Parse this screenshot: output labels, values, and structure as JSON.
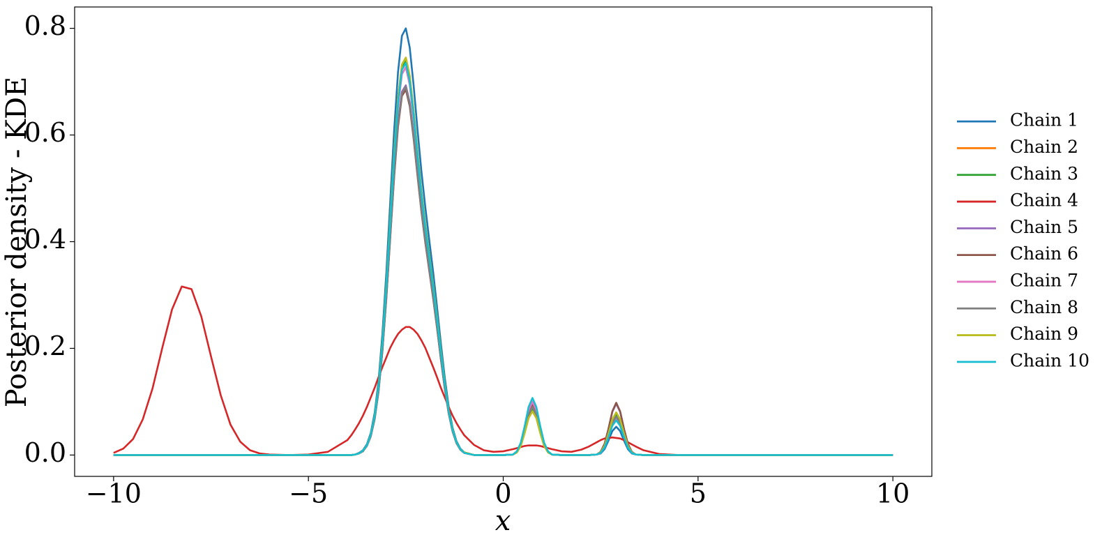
{
  "chart_data": {
    "type": "line",
    "xlabel": "x",
    "ylabel": "Posterior density - KDE",
    "xlim": [
      -11,
      11
    ],
    "ylim": [
      -0.04,
      0.84
    ],
    "xticks": [
      {
        "value": -10,
        "label": "−10"
      },
      {
        "value": -5,
        "label": "−5"
      },
      0,
      5,
      10
    ],
    "yticks": [
      {
        "value": 0,
        "label": "0.0"
      },
      0.2,
      0.4,
      0.6,
      0.8
    ],
    "grid": false,
    "legend": "right",
    "x": [
      -10,
      -9.75,
      -9.5,
      -9.25,
      -9,
      -8.75,
      -8.5,
      -8.25,
      -8,
      -7.75,
      -7.5,
      -7.25,
      -7,
      -6.75,
      -6.5,
      -6.25,
      -6,
      -5.5,
      -5,
      -4.5,
      -4,
      -3.9,
      -3.8,
      -3.7,
      -3.6,
      -3.5,
      -3.4,
      -3.3,
      -3.2,
      -3.1,
      -3,
      -2.9,
      -2.8,
      -2.7,
      -2.6,
      -2.5,
      -2.4,
      -2.3,
      -2.2,
      -2.1,
      -2,
      -1.9,
      -1.8,
      -1.7,
      -1.6,
      -1.5,
      -1.4,
      -1.3,
      -1.2,
      -1.1,
      -1,
      -0.75,
      -0.5,
      -0.25,
      0,
      0.25,
      0.35,
      0.45,
      0.55,
      0.65,
      0.75,
      0.85,
      0.95,
      1.05,
      1.15,
      1.25,
      1.5,
      1.75,
      2,
      2.2,
      2.4,
      2.5,
      2.6,
      2.7,
      2.8,
      2.9,
      3,
      3.1,
      3.2,
      3.3,
      3.4,
      3.6,
      4,
      4.5,
      5,
      6,
      7,
      8,
      9,
      10
    ],
    "series": [
      {
        "name": "Chain 1",
        "color": "#1f77b4",
        "values": [
          0,
          0,
          0,
          0,
          0,
          0,
          0,
          0,
          0,
          0,
          0,
          0,
          0,
          0,
          0,
          0,
          0,
          0,
          0,
          0,
          0,
          0,
          0.001,
          0.004,
          0.009,
          0.02,
          0.041,
          0.079,
          0.139,
          0.228,
          0.342,
          0.475,
          0.608,
          0.718,
          0.786,
          0.8,
          0.764,
          0.693,
          0.61,
          0.532,
          0.465,
          0.404,
          0.344,
          0.278,
          0.209,
          0.145,
          0.091,
          0.051,
          0.026,
          0.012,
          0.005,
          0,
          0,
          0,
          0,
          0.001,
          0.006,
          0.019,
          0.045,
          0.076,
          0.09,
          0.076,
          0.045,
          0.019,
          0.006,
          0.001,
          0,
          0,
          0,
          0,
          0.001,
          0.003,
          0.011,
          0.027,
          0.045,
          0.053,
          0.045,
          0.027,
          0.011,
          0.003,
          0.001,
          0,
          0,
          0,
          0,
          0,
          0,
          0,
          0,
          0
        ]
      },
      {
        "name": "Chain 2",
        "color": "#ff7f0e",
        "values": [
          0,
          0,
          0,
          0,
          0,
          0,
          0,
          0,
          0,
          0,
          0,
          0,
          0,
          0,
          0,
          0,
          0,
          0,
          0,
          0,
          0,
          0,
          0.001,
          0.003,
          0.008,
          0.018,
          0.038,
          0.073,
          0.13,
          0.212,
          0.319,
          0.442,
          0.566,
          0.669,
          0.732,
          0.745,
          0.711,
          0.645,
          0.568,
          0.495,
          0.433,
          0.377,
          0.32,
          0.259,
          0.195,
          0.135,
          0.084,
          0.048,
          0.024,
          0.011,
          0.005,
          0,
          0,
          0,
          0,
          0.001,
          0.005,
          0.017,
          0.042,
          0.07,
          0.083,
          0.07,
          0.042,
          0.017,
          0.005,
          0.001,
          0,
          0,
          0,
          0,
          0.001,
          0.005,
          0.016,
          0.039,
          0.066,
          0.078,
          0.066,
          0.039,
          0.016,
          0.005,
          0.001,
          0,
          0,
          0,
          0,
          0,
          0,
          0,
          0,
          0
        ]
      },
      {
        "name": "Chain 3",
        "color": "#2ca02c",
        "values": [
          0,
          0,
          0,
          0,
          0,
          0,
          0,
          0,
          0,
          0,
          0,
          0,
          0,
          0,
          0,
          0,
          0,
          0,
          0,
          0,
          0,
          0,
          0.001,
          0.003,
          0.008,
          0.018,
          0.038,
          0.073,
          0.129,
          0.21,
          0.317,
          0.439,
          0.562,
          0.664,
          0.727,
          0.74,
          0.706,
          0.641,
          0.564,
          0.492,
          0.43,
          0.374,
          0.318,
          0.257,
          0.194,
          0.134,
          0.084,
          0.048,
          0.024,
          0.011,
          0.005,
          0,
          0,
          0,
          0,
          0.001,
          0.005,
          0.018,
          0.043,
          0.072,
          0.086,
          0.072,
          0.043,
          0.018,
          0.005,
          0.001,
          0,
          0,
          0,
          0,
          0.001,
          0.005,
          0.016,
          0.038,
          0.063,
          0.075,
          0.063,
          0.038,
          0.016,
          0.005,
          0.001,
          0,
          0,
          0,
          0,
          0,
          0,
          0,
          0,
          0
        ]
      },
      {
        "name": "Chain 4",
        "color": "#d62728",
        "values": [
          0.004,
          0.012,
          0.03,
          0.067,
          0.125,
          0.201,
          0.273,
          0.316,
          0.311,
          0.26,
          0.185,
          0.112,
          0.057,
          0.025,
          0.009,
          0.003,
          0.001,
          0,
          0.001,
          0.006,
          0.028,
          0.037,
          0.048,
          0.06,
          0.074,
          0.09,
          0.108,
          0.126,
          0.146,
          0.165,
          0.183,
          0.201,
          0.215,
          0.227,
          0.235,
          0.24,
          0.24,
          0.235,
          0.227,
          0.215,
          0.201,
          0.183,
          0.165,
          0.146,
          0.126,
          0.108,
          0.09,
          0.074,
          0.06,
          0.048,
          0.037,
          0.019,
          0.009,
          0.006,
          0.007,
          0.011,
          0.013,
          0.015,
          0.017,
          0.018,
          0.018,
          0.018,
          0.017,
          0.015,
          0.013,
          0.011,
          0.007,
          0.006,
          0.01,
          0.016,
          0.024,
          0.028,
          0.031,
          0.032,
          0.033,
          0.032,
          0.031,
          0.028,
          0.024,
          0.02,
          0.016,
          0.009,
          0.002,
          0,
          0,
          0,
          0,
          0,
          0,
          0
        ]
      },
      {
        "name": "Chain 5",
        "color": "#9467bd",
        "values": [
          0,
          0,
          0,
          0,
          0,
          0,
          0,
          0,
          0,
          0,
          0,
          0,
          0,
          0,
          0,
          0,
          0,
          0,
          0,
          0,
          0,
          0,
          0.001,
          0.003,
          0.008,
          0.017,
          0.035,
          0.068,
          0.121,
          0.197,
          0.297,
          0.411,
          0.526,
          0.622,
          0.681,
          0.693,
          0.661,
          0.6,
          0.529,
          0.461,
          0.402,
          0.35,
          0.298,
          0.241,
          0.181,
          0.125,
          0.079,
          0.045,
          0.023,
          0.01,
          0.004,
          0,
          0,
          0,
          0,
          0.001,
          0.006,
          0.02,
          0.049,
          0.082,
          0.097,
          0.082,
          0.049,
          0.02,
          0.006,
          0.001,
          0,
          0,
          0,
          0,
          0.001,
          0.006,
          0.02,
          0.048,
          0.081,
          0.096,
          0.081,
          0.048,
          0.02,
          0.006,
          0.001,
          0,
          0,
          0,
          0,
          0,
          0,
          0,
          0,
          0
        ]
      },
      {
        "name": "Chain 6",
        "color": "#8c564b",
        "values": [
          0,
          0,
          0,
          0,
          0,
          0,
          0,
          0,
          0,
          0,
          0,
          0,
          0,
          0,
          0,
          0,
          0,
          0,
          0,
          0,
          0,
          0,
          0.001,
          0.003,
          0.007,
          0.017,
          0.035,
          0.067,
          0.119,
          0.195,
          0.293,
          0.407,
          0.52,
          0.615,
          0.673,
          0.685,
          0.654,
          0.593,
          0.523,
          0.456,
          0.398,
          0.346,
          0.294,
          0.238,
          0.179,
          0.124,
          0.078,
          0.044,
          0.022,
          0.01,
          0.004,
          0,
          0,
          0,
          0,
          0.001,
          0.006,
          0.02,
          0.047,
          0.078,
          0.093,
          0.078,
          0.047,
          0.02,
          0.006,
          0.001,
          0,
          0,
          0,
          0,
          0.001,
          0.006,
          0.021,
          0.049,
          0.082,
          0.098,
          0.082,
          0.049,
          0.021,
          0.006,
          0.001,
          0,
          0,
          0,
          0,
          0,
          0,
          0,
          0,
          0
        ]
      },
      {
        "name": "Chain 7",
        "color": "#e377c2",
        "values": [
          0,
          0,
          0,
          0,
          0,
          0,
          0,
          0,
          0,
          0,
          0,
          0,
          0,
          0,
          0,
          0,
          0,
          0,
          0,
          0,
          0,
          0,
          0.001,
          0.003,
          0.008,
          0.018,
          0.037,
          0.072,
          0.127,
          0.207,
          0.311,
          0.432,
          0.552,
          0.653,
          0.714,
          0.727,
          0.694,
          0.63,
          0.555,
          0.484,
          0.422,
          0.368,
          0.312,
          0.253,
          0.19,
          0.132,
          0.082,
          0.047,
          0.024,
          0.011,
          0.004,
          0,
          0,
          0,
          0,
          0.001,
          0.006,
          0.021,
          0.05,
          0.084,
          0.1,
          0.084,
          0.05,
          0.021,
          0.006,
          0.001,
          0,
          0,
          0,
          0,
          0.001,
          0.004,
          0.015,
          0.035,
          0.059,
          0.07,
          0.059,
          0.035,
          0.015,
          0.004,
          0.001,
          0,
          0,
          0,
          0,
          0,
          0,
          0,
          0,
          0
        ]
      },
      {
        "name": "Chain 8",
        "color": "#7f7f7f",
        "values": [
          0,
          0,
          0,
          0,
          0,
          0,
          0,
          0,
          0,
          0,
          0,
          0,
          0,
          0,
          0,
          0,
          0,
          0,
          0,
          0,
          0,
          0,
          0.001,
          0.003,
          0.008,
          0.017,
          0.035,
          0.068,
          0.12,
          0.196,
          0.295,
          0.41,
          0.524,
          0.62,
          0.678,
          0.69,
          0.659,
          0.598,
          0.526,
          0.459,
          0.401,
          0.349,
          0.296,
          0.24,
          0.181,
          0.125,
          0.078,
          0.044,
          0.023,
          0.01,
          0.004,
          0,
          0,
          0,
          0,
          0.001,
          0.006,
          0.019,
          0.045,
          0.076,
          0.09,
          0.076,
          0.045,
          0.019,
          0.006,
          0.001,
          0,
          0,
          0,
          0,
          0.001,
          0.005,
          0.015,
          0.036,
          0.061,
          0.072,
          0.061,
          0.036,
          0.015,
          0.005,
          0.001,
          0,
          0,
          0,
          0,
          0,
          0,
          0,
          0,
          0
        ]
      },
      {
        "name": "Chain 9",
        "color": "#bcbd22",
        "values": [
          0,
          0,
          0,
          0,
          0,
          0,
          0,
          0,
          0,
          0,
          0,
          0,
          0,
          0,
          0,
          0,
          0,
          0,
          0,
          0,
          0,
          0,
          0.001,
          0.003,
          0.008,
          0.018,
          0.038,
          0.073,
          0.13,
          0.212,
          0.319,
          0.442,
          0.566,
          0.669,
          0.732,
          0.745,
          0.711,
          0.645,
          0.568,
          0.495,
          0.433,
          0.377,
          0.32,
          0.259,
          0.195,
          0.135,
          0.084,
          0.048,
          0.024,
          0.011,
          0.005,
          0,
          0,
          0,
          0,
          0.001,
          0.005,
          0.017,
          0.041,
          0.069,
          0.082,
          0.069,
          0.041,
          0.017,
          0.005,
          0.001,
          0,
          0,
          0,
          0,
          0.001,
          0.005,
          0.017,
          0.04,
          0.067,
          0.08,
          0.067,
          0.04,
          0.017,
          0.005,
          0.001,
          0,
          0,
          0,
          0,
          0,
          0,
          0,
          0,
          0
        ]
      },
      {
        "name": "Chain 10",
        "color": "#17becf",
        "values": [
          0,
          0,
          0,
          0,
          0,
          0,
          0,
          0,
          0,
          0,
          0,
          0,
          0,
          0,
          0,
          0,
          0,
          0,
          0,
          0,
          0,
          0,
          0.001,
          0.003,
          0.008,
          0.018,
          0.038,
          0.072,
          0.128,
          0.209,
          0.315,
          0.436,
          0.558,
          0.66,
          0.722,
          0.735,
          0.701,
          0.637,
          0.561,
          0.489,
          0.427,
          0.372,
          0.316,
          0.255,
          0.192,
          0.133,
          0.083,
          0.047,
          0.024,
          0.011,
          0.004,
          0,
          0,
          0,
          0,
          0.001,
          0.007,
          0.023,
          0.054,
          0.09,
          0.107,
          0.09,
          0.054,
          0.023,
          0.007,
          0.001,
          0,
          0,
          0,
          0,
          0.001,
          0.004,
          0.014,
          0.033,
          0.055,
          0.065,
          0.055,
          0.033,
          0.014,
          0.004,
          0.001,
          0,
          0,
          0,
          0,
          0,
          0,
          0,
          0,
          0
        ]
      }
    ]
  }
}
